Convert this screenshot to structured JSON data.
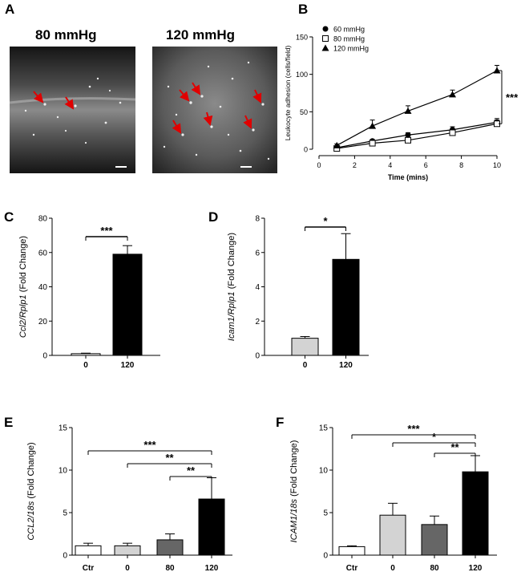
{
  "panels": {
    "A": "A",
    "B": "B",
    "C": "C",
    "D": "D",
    "E": "E",
    "F": "F"
  },
  "micrographs": [
    {
      "label": "80 mmHg"
    },
    {
      "label": "120 mmHg"
    }
  ],
  "chart_data": [
    {
      "id": "B",
      "type": "line",
      "xlabel": "Time  (mins)",
      "ylabel": "Leukocyte adhesion  (cells/field)",
      "xlim": [
        0,
        10
      ],
      "ylim": [
        0,
        150
      ],
      "xticks": [
        0,
        2,
        4,
        6,
        8,
        10
      ],
      "yticks": [
        0,
        50,
        100,
        150
      ],
      "legend_position": "top-left",
      "series": [
        {
          "name": "60 mmHg",
          "marker": "filled-circle",
          "x": [
            1,
            3,
            5,
            7.5,
            10
          ],
          "y": [
            2,
            11,
            19,
            26,
            36
          ],
          "err": [
            1,
            2,
            3,
            4,
            5
          ]
        },
        {
          "name": "80 mmHg",
          "marker": "open-square",
          "x": [
            1,
            3,
            5,
            7.5,
            10
          ],
          "y": [
            1,
            8,
            12,
            22,
            34
          ],
          "err": [
            1,
            2,
            3,
            4,
            5
          ]
        },
        {
          "name": "120 mmHg",
          "marker": "filled-triangle",
          "x": [
            1,
            3,
            5,
            7.5,
            10
          ],
          "y": [
            5,
            31,
            51,
            73,
            105
          ],
          "err": [
            2,
            8,
            7,
            6,
            7
          ]
        }
      ],
      "significance": "***"
    },
    {
      "id": "C",
      "type": "bar",
      "ylabel_italic": "Ccl2/Rplp1",
      "ylabel_rest": " (Fold Change)",
      "categories": [
        "0",
        "120"
      ],
      "values": [
        1,
        59
      ],
      "errors": [
        0.3,
        5
      ],
      "fills": [
        "#ffffff",
        "#000000"
      ],
      "ylim": [
        0,
        80
      ],
      "yticks": [
        0,
        20,
        40,
        60,
        80
      ],
      "brackets": [
        {
          "from": 0,
          "to": 1,
          "text": "***"
        }
      ]
    },
    {
      "id": "D",
      "type": "bar",
      "ylabel_italic": "Icam1/Rplp1",
      "ylabel_rest": " (Fold Change)",
      "categories": [
        "0",
        "120"
      ],
      "values": [
        1,
        5.6
      ],
      "errors": [
        0.1,
        1.5
      ],
      "fills": [
        "#d3d3d3",
        "#000000"
      ],
      "ylim": [
        0,
        8
      ],
      "yticks": [
        0,
        2,
        4,
        6,
        8
      ],
      "brackets": [
        {
          "from": 0,
          "to": 1,
          "text": "*"
        }
      ]
    },
    {
      "id": "E",
      "type": "bar",
      "ylabel_italic": "CCL2/18s",
      "ylabel_rest": " (Fold Change)",
      "categories": [
        "Ctr",
        "0",
        "80",
        "120"
      ],
      "values": [
        1.1,
        1.1,
        1.8,
        6.6
      ],
      "errors": [
        0.3,
        0.3,
        0.7,
        2.5
      ],
      "fills": [
        "#ffffff",
        "#d3d3d3",
        "#666666",
        "#000000"
      ],
      "ylim": [
        0,
        15
      ],
      "yticks": [
        0,
        5,
        10,
        15
      ],
      "brackets": [
        {
          "from": 0,
          "to": 3,
          "text": "***"
        },
        {
          "from": 1,
          "to": 3,
          "text": "**"
        },
        {
          "from": 2,
          "to": 3,
          "text": "**"
        }
      ]
    },
    {
      "id": "F",
      "type": "bar",
      "ylabel_italic": "ICAM1/18s",
      "ylabel_rest": " (Fold Change)",
      "categories": [
        "Ctr",
        "0",
        "80",
        "120"
      ],
      "values": [
        1,
        4.7,
        3.6,
        9.8
      ],
      "errors": [
        0.1,
        1.4,
        1.0,
        1.9
      ],
      "fills": [
        "#ffffff",
        "#d3d3d3",
        "#666666",
        "#000000"
      ],
      "ylim": [
        0,
        15
      ],
      "yticks": [
        0,
        5,
        10,
        15
      ],
      "brackets": [
        {
          "from": 0,
          "to": 3,
          "text": "***"
        },
        {
          "from": 1,
          "to": 3,
          "text": "*"
        },
        {
          "from": 2,
          "to": 3,
          "text": "**"
        }
      ]
    }
  ]
}
